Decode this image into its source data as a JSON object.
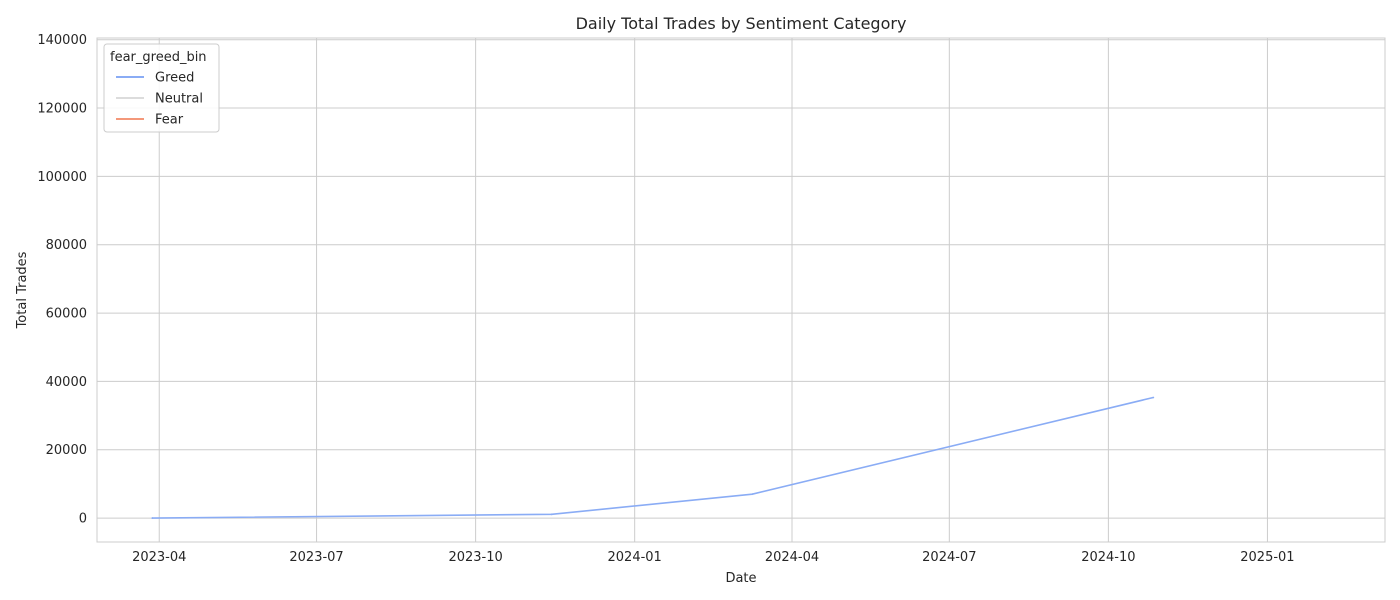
{
  "chart_data": {
    "type": "line",
    "title": "Daily Total Trades by Sentiment Category",
    "xlabel": "Date",
    "ylabel": "Total Trades",
    "x_ticks": [
      "2023-04",
      "2023-07",
      "2023-10",
      "2024-01",
      "2024-04",
      "2024-07",
      "2024-10",
      "2025-01"
    ],
    "y_ticks": [
      "0",
      "20000",
      "40000",
      "60000",
      "80000",
      "100000",
      "120000",
      "140000"
    ],
    "xlim": [
      "2023-02-24",
      "2025-03-10"
    ],
    "ylim": [
      -7000,
      140500
    ],
    "grid": true,
    "legend": {
      "title": "fear_greed_bin",
      "placement": "top-left",
      "entries": [
        {
          "name": "Greed",
          "color": "#8aacf5"
        },
        {
          "name": "Neutral",
          "color": "#dcdcdc"
        },
        {
          "name": "Fear",
          "color": "#f4987a"
        }
      ]
    },
    "series": [
      {
        "name": "Greed",
        "color": "#8aacf5",
        "points": [
          {
            "x": "2023-03-28",
            "y": 0
          },
          {
            "x": "2023-11-14",
            "y": 1100
          },
          {
            "x": "2024-03-09",
            "y": 7000
          },
          {
            "x": "2024-10-27",
            "y": 35300
          }
        ]
      },
      {
        "name": "Neutral",
        "color": "#dcdcdc",
        "points": []
      },
      {
        "name": "Fear",
        "color": "#f4987a",
        "points": []
      }
    ]
  }
}
